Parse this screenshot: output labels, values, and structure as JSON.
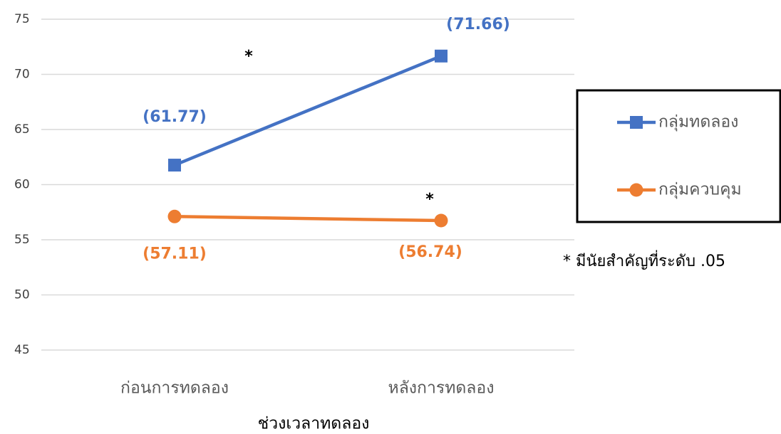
{
  "chart_data": {
    "type": "line",
    "categories": [
      "ก่อนการทดลอง",
      "หลังการทดลอง"
    ],
    "x_label": "ช่วงเวลาทดลอง",
    "series": [
      {
        "name": "กลุ่มทดลอง",
        "color": "#4472c4",
        "marker": "square",
        "values": [
          61.77,
          71.66
        ],
        "value_labels": [
          "(61.77)",
          "(71.66)"
        ]
      },
      {
        "name": "กลุ่มควบคุม",
        "color": "#ed7d31",
        "marker": "circle",
        "values": [
          57.11,
          56.74
        ],
        "value_labels": [
          "(57.11)",
          "(56.74)"
        ]
      }
    ],
    "ylim": [
      45,
      75
    ],
    "yticks": [
      45,
      50,
      55,
      60,
      65,
      70,
      75
    ],
    "grid": true,
    "legend": "right",
    "annotations": [
      "*",
      "*",
      "* มีนัยสำคัญที่ระดับ .05"
    ]
  }
}
